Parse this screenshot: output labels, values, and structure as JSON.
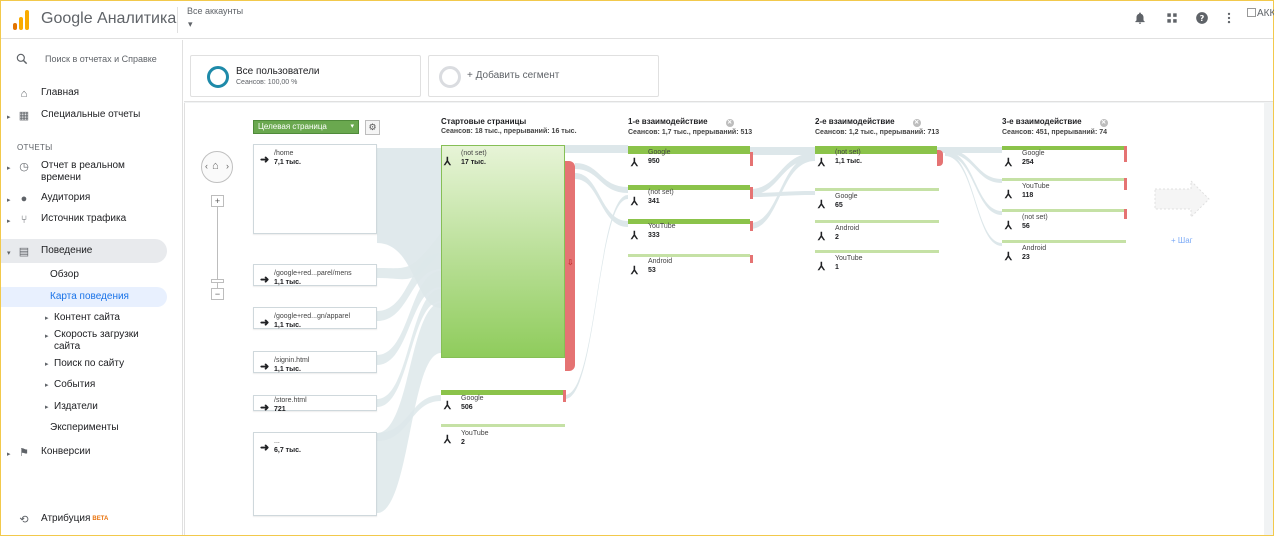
{
  "header": {
    "app_title": "Google Аналитика",
    "accounts_label": "Все аккаунты",
    "accounts_caret": "▾",
    "broken_image_alt": "АКК"
  },
  "icons": {
    "logo": "analytics-logo-icon",
    "notifications": "bell-icon",
    "apps": "apps-grid-icon",
    "help": "help-icon",
    "more": "more-vert-icon"
  },
  "colors": {
    "accent": "#1a73e8",
    "logo_orange": "#f9ab00",
    "logo_dark_orange": "#e37400",
    "node_green": "#8bc34a",
    "drop_red": "#e57373",
    "segment_ring": "#1e8aa9"
  },
  "sidebar": {
    "search_placeholder": "Поиск в отчетах и Справке",
    "section_reports": "ОТЧЕТЫ",
    "items": [
      {
        "label": "Главная",
        "icon": "home-icon"
      },
      {
        "label": "Специальные отчеты",
        "icon": "dashboard-icon"
      },
      {
        "label": "Отчет в реальном времени",
        "icon": "clock-icon"
      },
      {
        "label": "Аудитория",
        "icon": "person-icon"
      },
      {
        "label": "Источник трафика",
        "icon": "acquisition-icon"
      },
      {
        "label": "Поведение",
        "icon": "behavior-icon"
      },
      {
        "label": "Конверсии",
        "icon": "flag-icon"
      },
      {
        "label": "Атрибуция",
        "icon": "attribution-icon",
        "badge": "BETA"
      }
    ],
    "behavior_sub": [
      {
        "label": "Обзор"
      },
      {
        "label": "Карта поведения",
        "active": true
      },
      {
        "label": "Контент сайта"
      },
      {
        "label": "Скорость загрузки сайта"
      },
      {
        "label": "Поиск по сайту"
      },
      {
        "label": "События"
      },
      {
        "label": "Издатели"
      },
      {
        "label": "Эксперименты"
      }
    ]
  },
  "segments": {
    "active": {
      "title": "Все пользователи",
      "subtitle": "Сеансов: 100,00 %"
    },
    "add_label": "+ Добавить сегмент"
  },
  "flow": {
    "dimension_select": "Целевая страница",
    "add_step": "+ Шаг",
    "landing_pages": [
      {
        "name": "/home",
        "value": "7,1 тыс."
      },
      {
        "name": "/google+red...parel/mens",
        "value": "1,1 тыс."
      },
      {
        "name": "/google+red...gn/apparel",
        "value": "1,1 тыс."
      },
      {
        "name": "/signin.html",
        "value": "1,1 тыс."
      },
      {
        "name": "/store.html",
        "value": "721"
      },
      {
        "name": "...",
        "value": "6,7 тыс."
      }
    ],
    "columns": [
      {
        "title": "Стартовые страницы",
        "stats": "Сеансов: 18 тыс., прерываний: 16 тыс.",
        "nodes": [
          {
            "name": "(not set)",
            "value": "17 тыс."
          },
          {
            "name": "Google",
            "value": "506"
          },
          {
            "name": "YouTube",
            "value": "2"
          }
        ]
      },
      {
        "title": "1-е взаимодействие",
        "stats": "Сеансов: 1,7 тыс., прерываний: 513",
        "nodes": [
          {
            "name": "Google",
            "value": "950"
          },
          {
            "name": "(not set)",
            "value": "341"
          },
          {
            "name": "YouTube",
            "value": "333"
          },
          {
            "name": "Android",
            "value": "53"
          }
        ]
      },
      {
        "title": "2-е взаимодействие",
        "stats": "Сеансов: 1,2 тыс., прерываний: 713",
        "nodes": [
          {
            "name": "(not set)",
            "value": "1,1 тыс."
          },
          {
            "name": "Google",
            "value": "65"
          },
          {
            "name": "Android",
            "value": "2"
          },
          {
            "name": "YouTube",
            "value": "1"
          }
        ]
      },
      {
        "title": "3-е взаимодействие",
        "stats": "Сеансов: 451, прерываний: 74",
        "nodes": [
          {
            "name": "Google",
            "value": "254"
          },
          {
            "name": "YouTube",
            "value": "118"
          },
          {
            "name": "(not set)",
            "value": "56"
          },
          {
            "name": "Android",
            "value": "23"
          }
        ]
      }
    ]
  }
}
